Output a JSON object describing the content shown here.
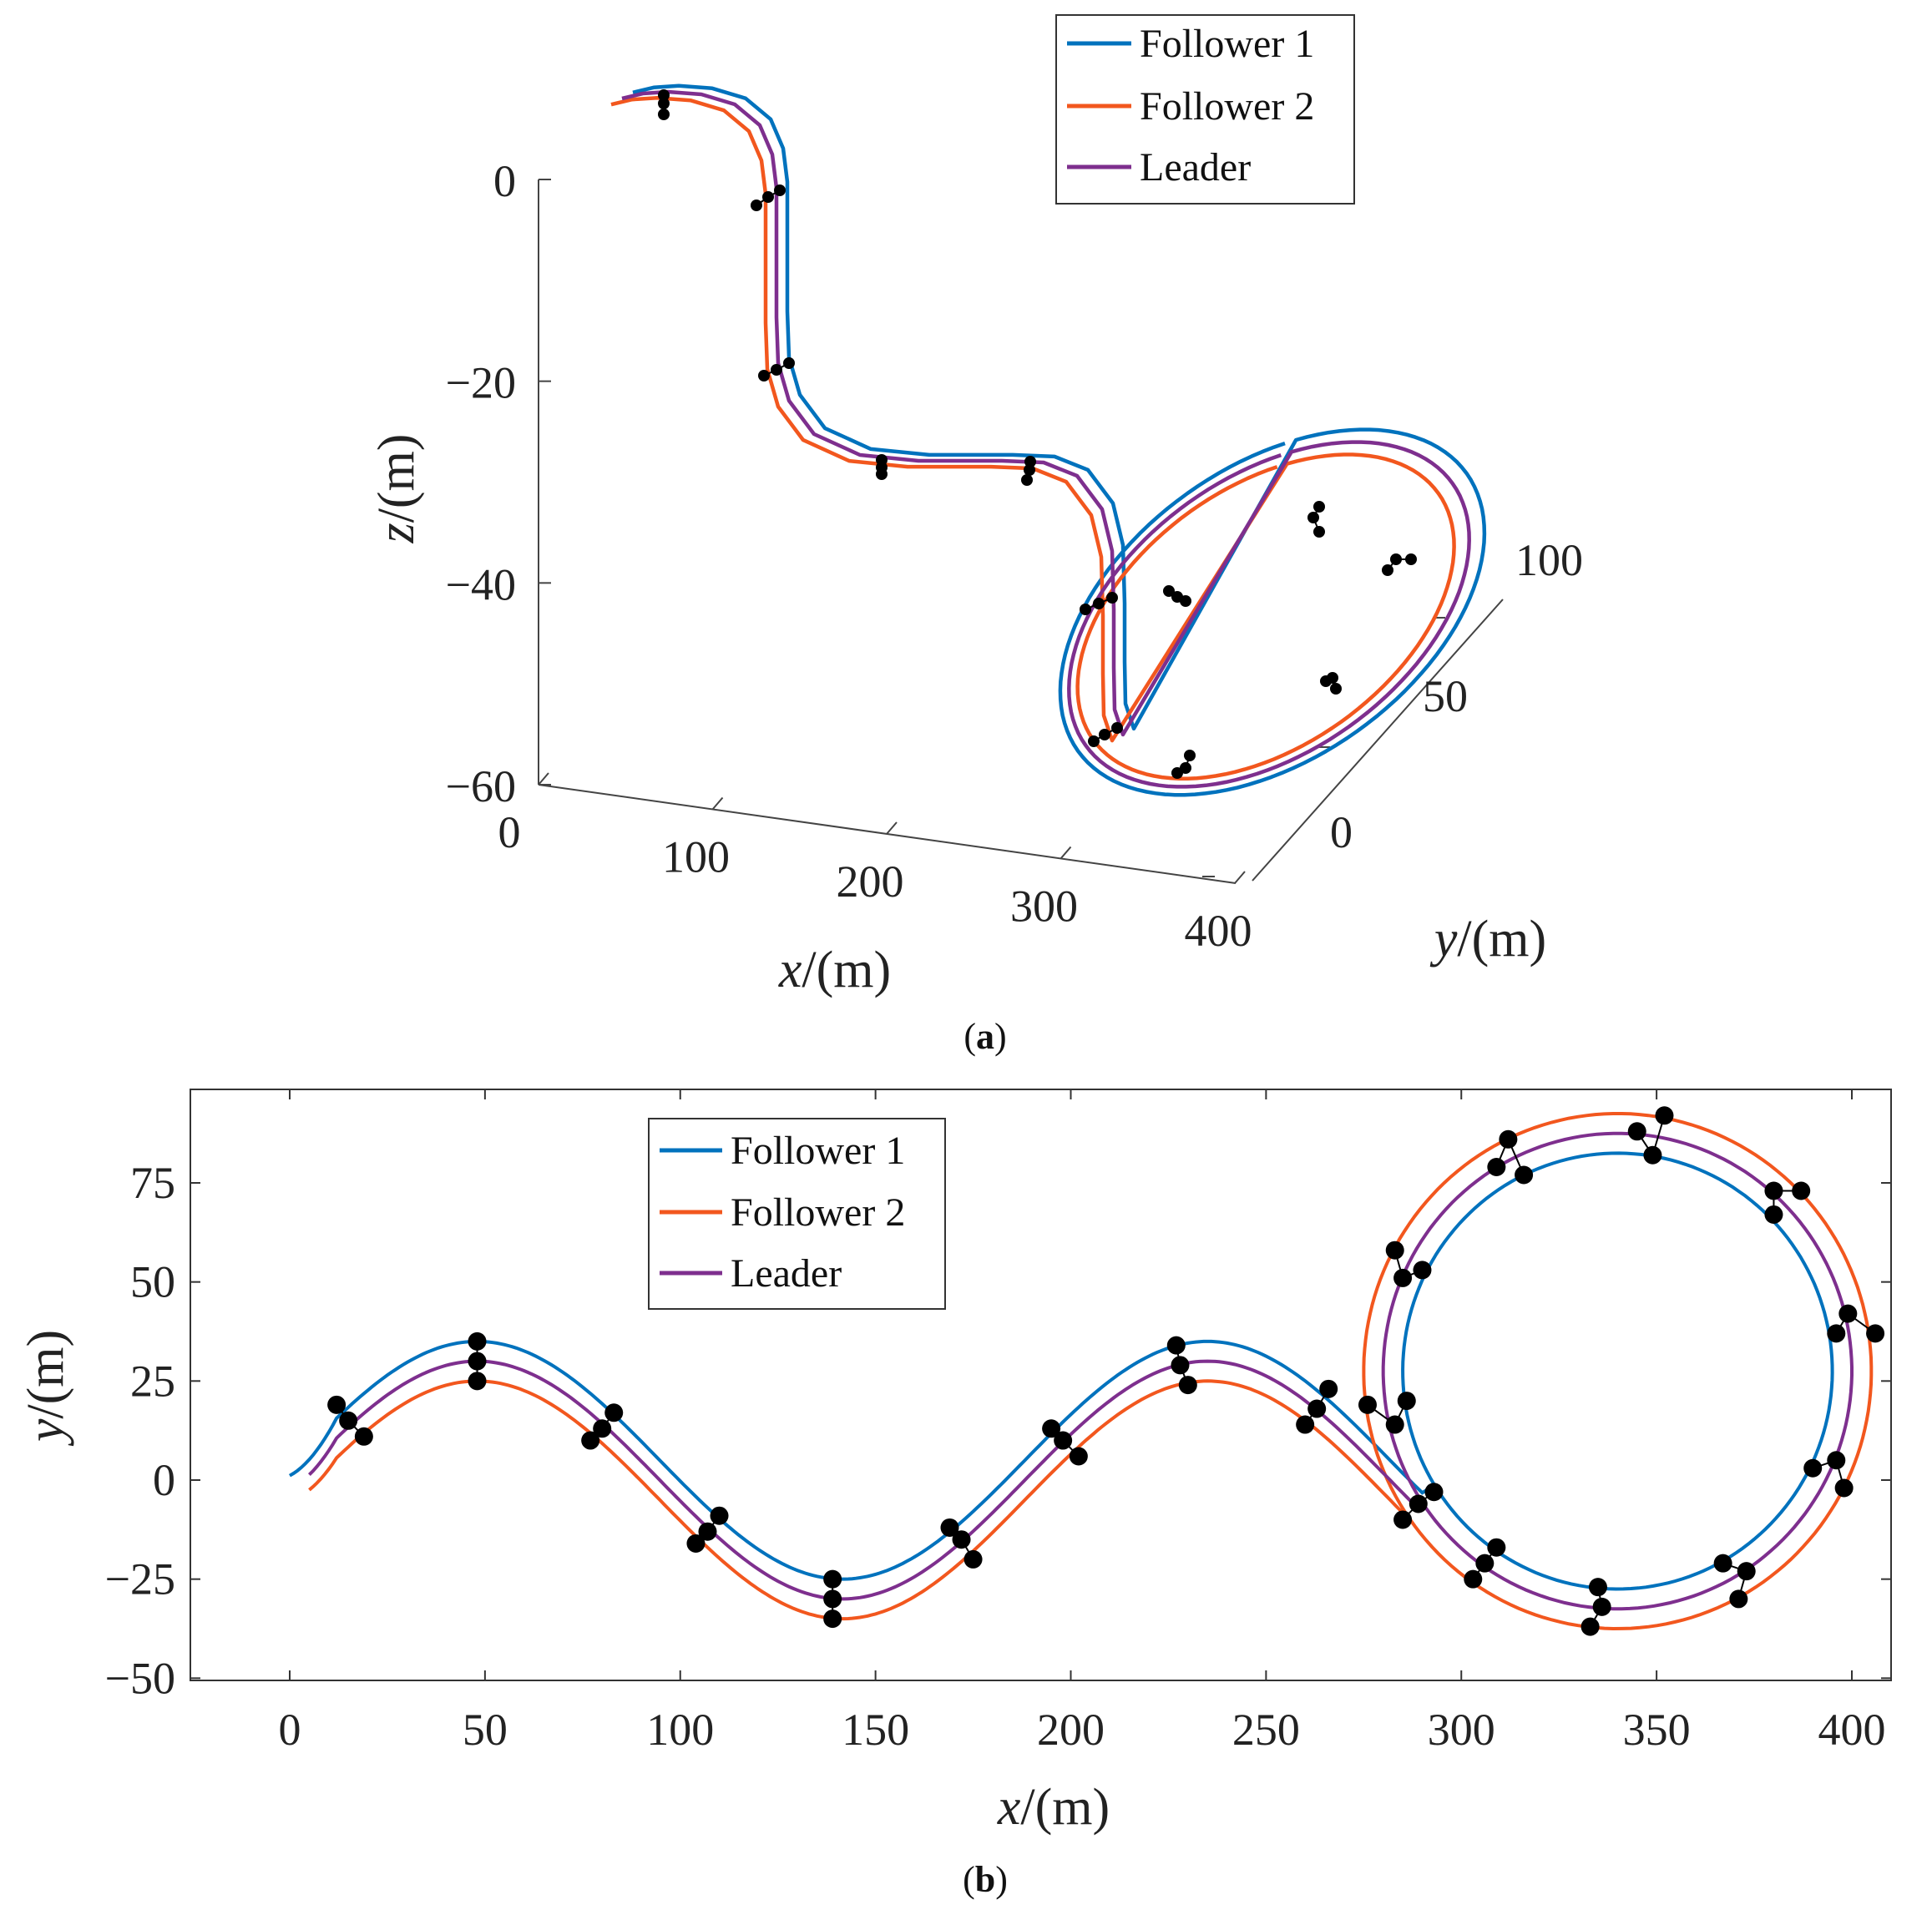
{
  "colors": {
    "follower1": "#0072BD",
    "follower2": "#F2571E",
    "leader": "#7E2F8E",
    "marker": "#000000",
    "axis": "#222222"
  },
  "chart_data": [
    {
      "id": "a",
      "type": "line",
      "projection": "3d",
      "caption_letter": "a",
      "xlabel_var": "x",
      "ylabel_var": "y",
      "zlabel_var": "z",
      "label_unit": "/(m)",
      "x_ticks": [
        "0",
        "100",
        "200",
        "300",
        "400"
      ],
      "y_ticks": [
        "0",
        "50",
        "100"
      ],
      "z_ticks": [
        "0",
        "−20",
        "−40",
        "−60"
      ],
      "xlim": [
        0,
        420
      ],
      "ylim": [
        -30,
        120
      ],
      "zlim": [
        -60,
        5
      ],
      "legend": {
        "placement": "top-right",
        "entries": [
          "Follower 1",
          "Follower 2",
          "Leader"
        ]
      },
      "series": [
        {
          "name": "Follower 1",
          "color_key": "follower1",
          "lateral_offset": 5
        },
        {
          "name": "Follower 2",
          "color_key": "follower2",
          "lateral_offset": -5
        },
        {
          "name": "Leader",
          "color_key": "leader",
          "lateral_offset": 0
        }
      ],
      "reference_path": "sinusoid x 0-320 (amplitude 30, period ~188, phase start ~-15 near x=0) followed by circle centered (340, 27.5) radius 60; z descends 0 to -60 with steps near x 50, 190",
      "formation_marker_x": [
        20,
        50,
        100,
        140,
        175,
        200,
        230,
        265,
        290,
        330,
        345,
        380,
        395
      ]
    },
    {
      "id": "b",
      "type": "line",
      "caption_letter": "b",
      "xlabel_var": "x",
      "ylabel_var": "y",
      "label_unit": "/(m)",
      "x_ticks": [
        "0",
        "50",
        "100",
        "150",
        "200",
        "250",
        "300",
        "350",
        "400"
      ],
      "y_ticks": [
        "−50",
        "−25",
        "0",
        "25",
        "50",
        "75"
      ],
      "xlim": [
        -25,
        420
      ],
      "ylim": [
        -50,
        100
      ],
      "grid": false,
      "legend": {
        "placement": "top-center",
        "entries": [
          "Follower 1",
          "Follower 2",
          "Leader"
        ]
      },
      "series": [
        {
          "name": "Follower 1",
          "color_key": "follower1",
          "wave": {
            "x_start": 0,
            "x_end": 290,
            "amplitude": 30,
            "center_y": 5,
            "period": 187,
            "phase_x": 48
          },
          "circle": {
            "cx": 340,
            "cy": 27.5,
            "r": 55
          }
        },
        {
          "name": "Follower 2",
          "color_key": "follower2",
          "wave": {
            "x_start": 5,
            "x_end": 285,
            "amplitude": 30,
            "center_y": -5,
            "period": 187,
            "phase_x": 48
          },
          "circle": {
            "cx": 340,
            "cy": 27.5,
            "r": 65
          }
        },
        {
          "name": "Leader",
          "color_key": "leader",
          "wave": {
            "x_start": 5,
            "x_end": 288,
            "amplitude": 30,
            "center_y": 0,
            "period": 187,
            "phase_x": 48
          },
          "circle": {
            "cx": 340,
            "cy": 27.5,
            "r": 60
          }
        }
      ],
      "formation_markers": [
        [
          [
            12,
            19
          ],
          [
            15,
            15
          ],
          [
            19,
            11
          ]
        ],
        [
          [
            48,
            35
          ],
          [
            48,
            30
          ],
          [
            48,
            25
          ]
        ],
        [
          [
            77,
            10
          ],
          [
            80,
            13
          ],
          [
            83,
            17
          ]
        ],
        [
          [
            104,
            -16
          ],
          [
            107,
            -13
          ],
          [
            110,
            -9
          ]
        ],
        [
          [
            139,
            -25
          ],
          [
            139,
            -30
          ],
          [
            139,
            -35
          ]
        ],
        [
          [
            169,
            -12
          ],
          [
            172,
            -15
          ],
          [
            175,
            -20
          ]
        ],
        [
          [
            195,
            13
          ],
          [
            198,
            10
          ],
          [
            202,
            6
          ]
        ],
        [
          [
            227,
            34
          ],
          [
            228,
            29
          ],
          [
            230,
            24
          ]
        ],
        [
          [
            260,
            14
          ],
          [
            263,
            18
          ],
          [
            266,
            23
          ]
        ],
        [
          [
            276,
            19
          ],
          [
            283,
            14
          ],
          [
            286,
            20
          ]
        ],
        [
          [
            285,
            -10
          ],
          [
            289,
            -6
          ],
          [
            293,
            -3
          ]
        ],
        [
          [
            303,
            -25
          ],
          [
            306,
            -21
          ],
          [
            309,
            -17
          ]
        ],
        [
          [
            335,
            -27
          ],
          [
            336,
            -32
          ],
          [
            333,
            -37
          ]
        ],
        [
          [
            367,
            -21
          ],
          [
            373,
            -23
          ],
          [
            371,
            -30
          ]
        ],
        [
          [
            390,
            3
          ],
          [
            396,
            5
          ],
          [
            398,
            -2
          ]
        ],
        [
          [
            396,
            37
          ],
          [
            399,
            42
          ],
          [
            406,
            37
          ]
        ],
        [
          [
            380,
            67
          ],
          [
            380,
            73
          ],
          [
            387,
            73
          ]
        ],
        [
          [
            345,
            88
          ],
          [
            349,
            82
          ],
          [
            352,
            92
          ]
        ],
        [
          [
            309,
            79
          ],
          [
            312,
            86
          ],
          [
            316,
            77
          ]
        ],
        [
          [
            283,
            58
          ],
          [
            285,
            51
          ],
          [
            290,
            53
          ]
        ]
      ]
    }
  ]
}
